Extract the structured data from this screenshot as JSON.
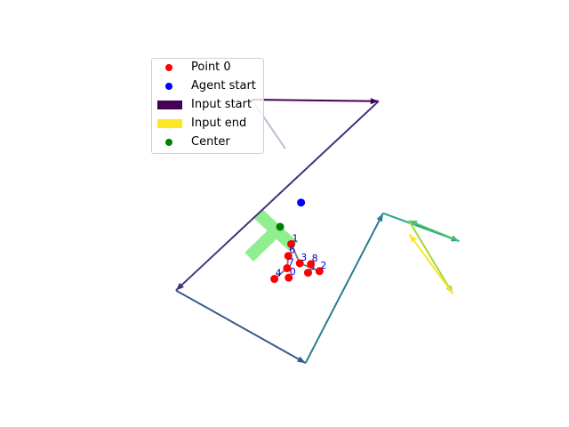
{
  "chart_data": {
    "type": "scatter",
    "title": "",
    "xlabel": "",
    "ylabel": "",
    "axes_visible": false,
    "xlim": [
      -4,
      4
    ],
    "ylim": [
      -4,
      4
    ],
    "legend_position": "upper-left",
    "legend": [
      {
        "label": "Point 0",
        "marker": "circle",
        "color": "#ff0000"
      },
      {
        "label": "Agent start",
        "marker": "circle",
        "color": "#0000ff"
      },
      {
        "label": "Input start",
        "marker": "rect",
        "color": "#440154"
      },
      {
        "label": "Input end",
        "marker": "rect",
        "color": "#fde725"
      },
      {
        "label": "Center",
        "marker": "circle",
        "color": "#008000"
      }
    ],
    "points": [
      {
        "label": "0",
        "x": -0.07,
        "y": -1.51
      },
      {
        "label": "1",
        "x": -0.01,
        "y": -0.69
      },
      {
        "label": "2",
        "x": 0.68,
        "y": -1.35
      },
      {
        "label": "3",
        "x": 0.2,
        "y": -1.16
      },
      {
        "label": "4",
        "x": -0.42,
        "y": -1.54
      },
      {
        "label": "5",
        "x": 0.4,
        "y": -1.39
      },
      {
        "label": "6",
        "x": -0.08,
        "y": -0.98
      },
      {
        "label": "7",
        "x": -0.11,
        "y": -1.28
      },
      {
        "label": "8",
        "x": 0.47,
        "y": -1.18
      }
    ],
    "point_links": [
      [
        1,
        3
      ],
      [
        3,
        2
      ],
      [
        7,
        4
      ],
      [
        6,
        7
      ]
    ],
    "agent_start": {
      "x": 0.23,
      "y": 0.32
    },
    "center": {
      "x": -0.28,
      "y": -0.27
    },
    "input_segment": {
      "start": {
        "x": -0.97,
        "y": 2.83
      },
      "end": {
        "x": -0.15,
        "y": 1.63
      }
    },
    "trajectory": [
      {
        "x": -0.97,
        "y": 2.83
      },
      {
        "x": 2.12,
        "y": 2.79
      },
      {
        "x": -2.82,
        "y": -1.82
      },
      {
        "x": 0.34,
        "y": -3.59
      },
      {
        "x": 2.23,
        "y": 0.06
      },
      {
        "x": 4.09,
        "y": -0.62
      },
      {
        "x": 2.86,
        "y": -0.12
      },
      {
        "x": 3.93,
        "y": -1.9
      },
      {
        "x": 2.87,
        "y": -0.45
      }
    ],
    "colors": {
      "point": "#ff0000",
      "point_label": "#0000cc",
      "point_link": "#808080",
      "agent_start": "#0000ff",
      "center": "#008000",
      "region": "#90ee90",
      "input_segment": "#c8b8d4"
    },
    "colormap": "viridis"
  }
}
